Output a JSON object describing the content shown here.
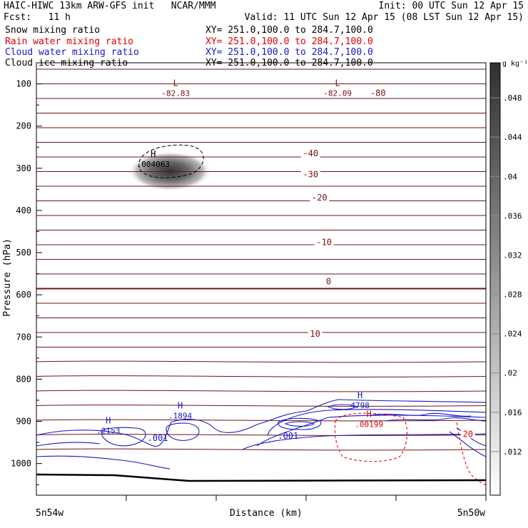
{
  "header": {
    "line1_left": "HAIC-HIWC 13km ARW-GFS init   NCAR/MMM",
    "line1_right": "Init: 00 UTC Sun 12 Apr 15",
    "line2_left": "Fcst:   11 h",
    "line2_right": "Valid: 11 UTC Sun 12 Apr 15 (08 LST Sun 12 Apr 15)"
  },
  "fields": [
    {
      "name": "Snow mixing ratio",
      "xy": "XY= 251.0,100.0 to 284.7,100.0",
      "color": "#000000"
    },
    {
      "name": "Rain water mixing ratio",
      "xy": "XY= 251.0,100.0 to 284.7,100.0",
      "color": "#e00000"
    },
    {
      "name": "Cloud water mixing ratio",
      "xy": "XY= 251.0,100.0 to 284.7,100.0",
      "color": "#1818c8"
    },
    {
      "name": "Cloud ice mixing ratio",
      "xy": "XY= 251.0,100.0 to 284.7,100.0",
      "color": "#000000"
    }
  ],
  "chart_data": {
    "type": "contour",
    "xlabel": "Distance (km)",
    "ylabel": "Pressure (hPa)",
    "x_endpoints": [
      "5n54w",
      "5n50w"
    ],
    "yticks": [
      100,
      200,
      300,
      400,
      500,
      600,
      700,
      800,
      900,
      1000
    ],
    "ylim": [
      50,
      1075
    ],
    "colorbar": {
      "unit": "g kg⁻¹",
      "ticks": [
        ".012",
        ".016",
        ".02",
        ".024",
        ".028",
        ".032",
        ".036",
        ".04",
        ".044",
        ".048"
      ]
    },
    "temperature_labels": [
      {
        "text": "-80",
        "x": 0.76,
        "p": 122,
        "color": "#7a1010"
      },
      {
        "text": "-40",
        "x": 0.61,
        "p": 265,
        "color": "#7a1010"
      },
      {
        "text": "-30",
        "x": 0.61,
        "p": 315,
        "color": "#7a1010"
      },
      {
        "text": "-20",
        "x": 0.63,
        "p": 370,
        "color": "#7a1010"
      },
      {
        "text": "-10",
        "x": 0.64,
        "p": 475,
        "color": "#7a1010"
      },
      {
        "text": "0",
        "x": 0.65,
        "p": 568,
        "color": "#7a1010"
      },
      {
        "text": "10",
        "x": 0.62,
        "p": 693,
        "color": "#7a1010"
      },
      {
        "text": "20",
        "x": 0.96,
        "p": 930,
        "color": "#e00000"
      }
    ],
    "extrema": [
      {
        "type": "L",
        "value": "-82.83",
        "x": 0.31,
        "p": 115,
        "color": "#7a1010"
      },
      {
        "type": "L",
        "value": "-82.09",
        "x": 0.67,
        "p": 115,
        "color": "#7a1010"
      },
      {
        "type": "H",
        "value": ".004063",
        "x": 0.26,
        "p": 283,
        "color": "#000000"
      },
      {
        "type": "H",
        "value": ".1894",
        "x": 0.32,
        "p": 880,
        "color": "#1818c8"
      },
      {
        "type": "H",
        "value": ".2153",
        "x": 0.16,
        "p": 915,
        "color": "#1818c8"
      },
      {
        "type": "H",
        "value": "4798",
        "x": 0.72,
        "p": 855,
        "color": "#1818c8"
      },
      {
        "type": "H",
        "value": ".00199",
        "x": 0.74,
        "p": 900,
        "color": "#e00000"
      }
    ],
    "other_labels": [
      {
        "text": ".001",
        "x": 0.27,
        "p": 940,
        "color": "#1818c8"
      },
      {
        "text": ".001",
        "x": 0.56,
        "p": 935,
        "color": "#1818c8"
      }
    ]
  }
}
